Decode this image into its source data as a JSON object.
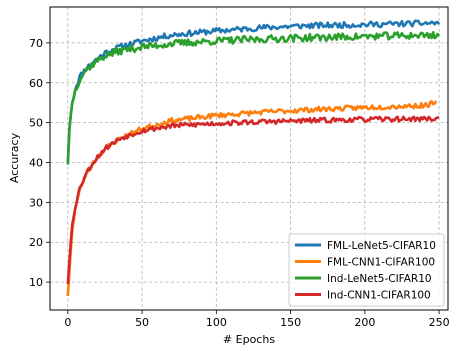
{
  "chart_data": {
    "type": "line",
    "title": "",
    "xlabel": "# Epochs",
    "ylabel": "Accuracy",
    "xlim": [
      -12,
      256
    ],
    "ylim": [
      3,
      79
    ],
    "xticks": [
      0,
      50,
      100,
      150,
      200,
      250
    ],
    "yticks": [
      10,
      20,
      30,
      40,
      50,
      60,
      70
    ],
    "grid": true,
    "legend_position": "lower-right",
    "series": [
      {
        "name": "FML-LeNet5-CIFAR10",
        "color": "#1f77b4",
        "anchors": [
          [
            0,
            39.5
          ],
          [
            1,
            48
          ],
          [
            2,
            52
          ],
          [
            3,
            55
          ],
          [
            5,
            58.5
          ],
          [
            8,
            61.5
          ],
          [
            12,
            63.5
          ],
          [
            18,
            65.5
          ],
          [
            25,
            67.5
          ],
          [
            35,
            69
          ],
          [
            50,
            70.5
          ],
          [
            70,
            72
          ],
          [
            100,
            73
          ],
          [
            130,
            73.8
          ],
          [
            160,
            74.3
          ],
          [
            200,
            74.6
          ],
          [
            250,
            75
          ]
        ],
        "noise": 0.7,
        "seed": 11
      },
      {
        "name": "FML-CNN1-CIFAR100",
        "color": "#ff7f0e",
        "anchors": [
          [
            0,
            6.5
          ],
          [
            1,
            12
          ],
          [
            2,
            18
          ],
          [
            3,
            23
          ],
          [
            5,
            28.5
          ],
          [
            8,
            33
          ],
          [
            12,
            37
          ],
          [
            18,
            40.5
          ],
          [
            25,
            43.5
          ],
          [
            35,
            46
          ],
          [
            50,
            48.5
          ],
          [
            70,
            50.5
          ],
          [
            100,
            51.8
          ],
          [
            130,
            52.6
          ],
          [
            160,
            53.2
          ],
          [
            200,
            53.8
          ],
          [
            240,
            54.3
          ],
          [
            248,
            55
          ]
        ],
        "noise": 0.6,
        "seed": 23
      },
      {
        "name": "Ind-LeNet5-CIFAR10",
        "color": "#2ca02c",
        "anchors": [
          [
            0,
            39.5
          ],
          [
            1,
            48
          ],
          [
            2,
            52
          ],
          [
            3,
            55
          ],
          [
            5,
            58
          ],
          [
            8,
            61
          ],
          [
            12,
            63.2
          ],
          [
            18,
            65
          ],
          [
            25,
            66.8
          ],
          [
            35,
            68
          ],
          [
            50,
            69
          ],
          [
            70,
            69.8
          ],
          [
            100,
            70.5
          ],
          [
            150,
            71.2
          ],
          [
            200,
            71.6
          ],
          [
            250,
            72
          ]
        ],
        "noise": 0.9,
        "seed": 37
      },
      {
        "name": "Ind-CNN1-CIFAR100",
        "color": "#d62728",
        "anchors": [
          [
            0,
            9.5
          ],
          [
            1,
            15
          ],
          [
            2,
            20
          ],
          [
            3,
            24.5
          ],
          [
            5,
            29
          ],
          [
            8,
            33.5
          ],
          [
            12,
            37
          ],
          [
            18,
            40.5
          ],
          [
            25,
            43.5
          ],
          [
            35,
            46
          ],
          [
            50,
            48
          ],
          [
            70,
            49.2
          ],
          [
            100,
            49.8
          ],
          [
            130,
            50.2
          ],
          [
            160,
            50.5
          ],
          [
            200,
            50.8
          ],
          [
            250,
            51
          ]
        ],
        "noise": 0.6,
        "seed": 53
      }
    ]
  }
}
